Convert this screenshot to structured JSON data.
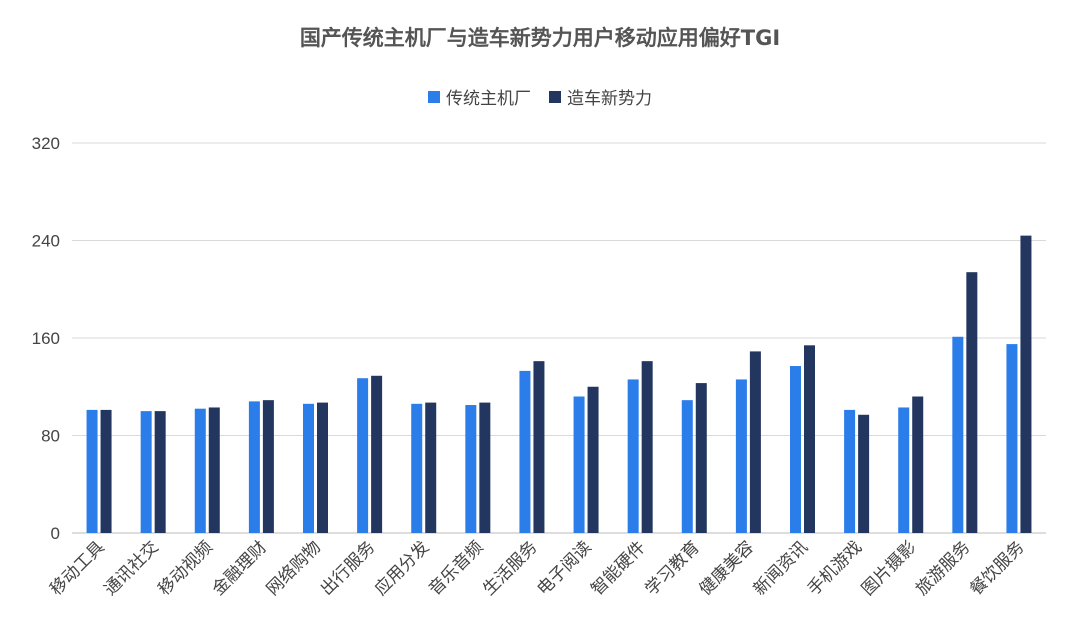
{
  "chart_data": {
    "type": "bar",
    "title": "国产传统主机厂与造车新势力用户移动应用偏好TGI",
    "xlabel": "",
    "ylabel": "",
    "ylim": [
      0,
      320
    ],
    "yticks": [
      0,
      80,
      160,
      240,
      320
    ],
    "grid": true,
    "legend_position": "top",
    "categories": [
      "移动工具",
      "通讯社交",
      "移动视频",
      "金融理财",
      "网络购物",
      "出行服务",
      "应用分发",
      "音乐音频",
      "生活服务",
      "电子阅读",
      "智能硬件",
      "学习教育",
      "健康美容",
      "新闻资讯",
      "手机游戏",
      "图片摄影",
      "旅游服务",
      "餐饮服务"
    ],
    "series": [
      {
        "name": "传统主机厂",
        "color": "#2b7de9",
        "values": [
          101,
          100,
          102,
          108,
          106,
          127,
          106,
          105,
          133,
          112,
          126,
          109,
          126,
          137,
          101,
          103,
          161,
          155
        ]
      },
      {
        "name": "造车新势力",
        "color": "#23365f",
        "values": [
          101,
          100,
          103,
          109,
          107,
          129,
          107,
          107,
          141,
          120,
          141,
          123,
          149,
          154,
          97,
          112,
          214,
          244
        ]
      }
    ]
  }
}
